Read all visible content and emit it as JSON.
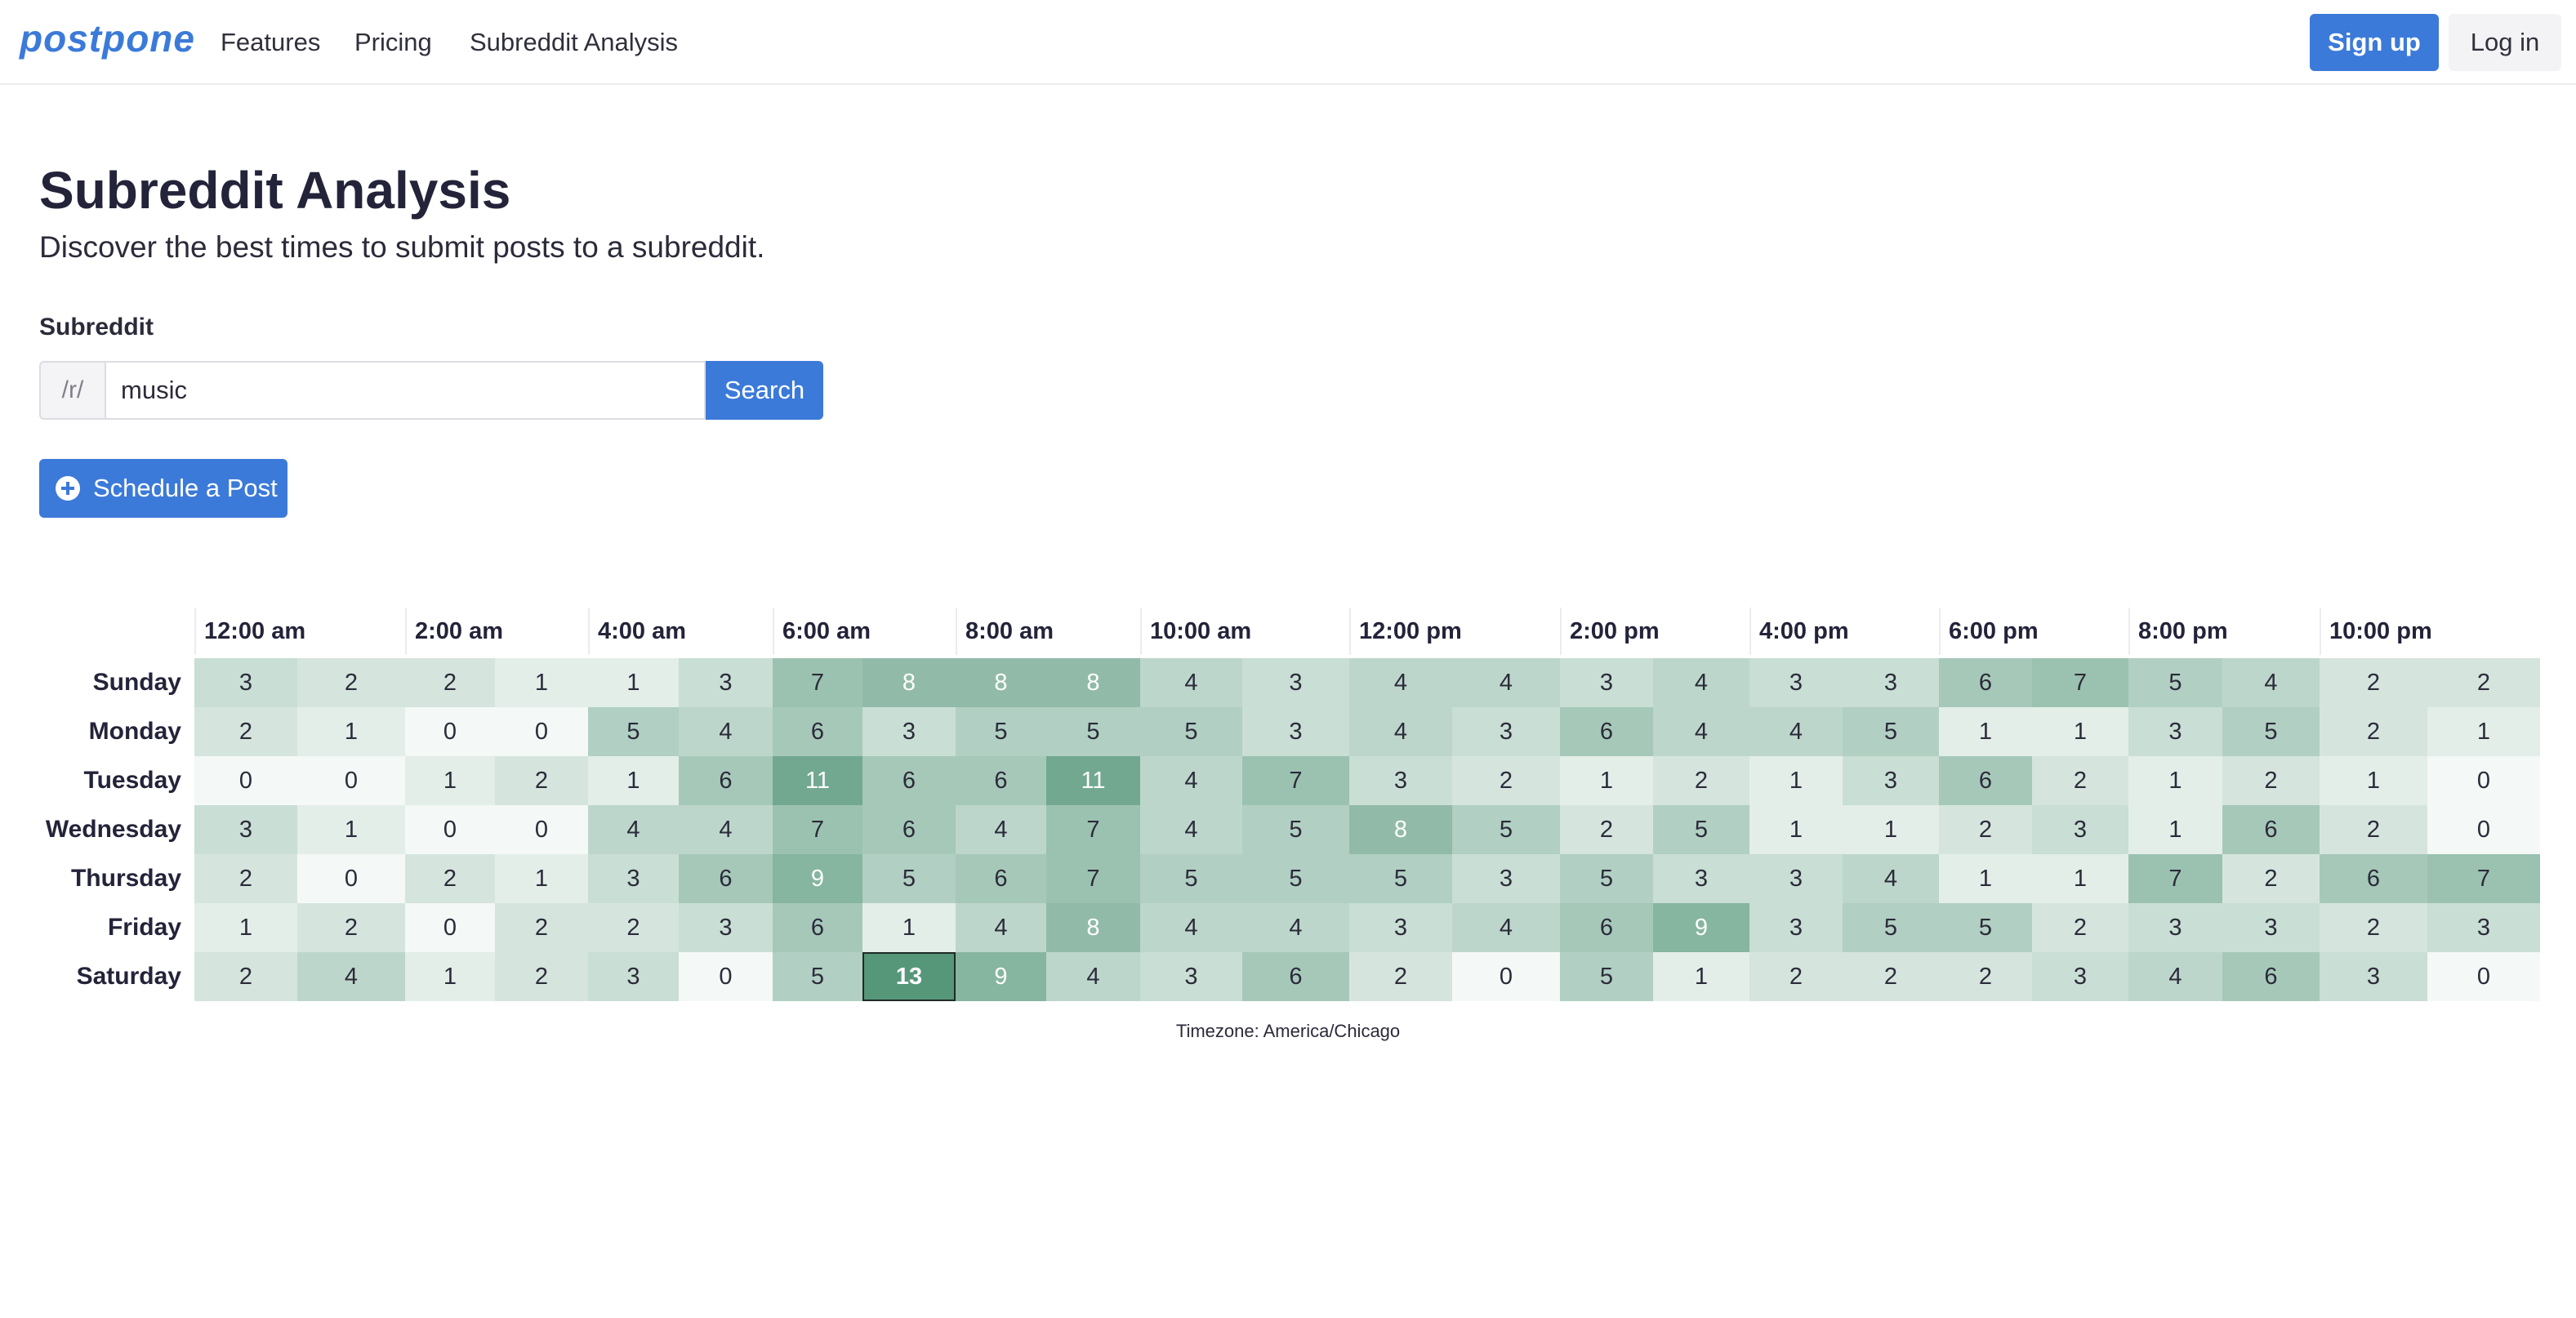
{
  "nav": {
    "logo": "postpone",
    "links": [
      "Features",
      "Pricing",
      "Subreddit Analysis"
    ],
    "signup": "Sign up",
    "login": "Log in"
  },
  "page": {
    "title": "Subreddit Analysis",
    "subtitle": "Discover the best times to submit posts to a subreddit."
  },
  "form": {
    "label": "Subreddit",
    "prefix": "/r/",
    "value": "music",
    "search": "Search",
    "schedule": "Schedule a Post"
  },
  "colors": {
    "accent": "#3b7ad9",
    "heat_low": "#f4f8f6",
    "heat_high": "#5e9c80"
  },
  "chart_data": {
    "type": "heatmap",
    "hour_labels": [
      "12:00 am",
      "2:00 am",
      "4:00 am",
      "6:00 am",
      "8:00 am",
      "10:00 am",
      "12:00 pm",
      "2:00 pm",
      "4:00 pm",
      "6:00 pm",
      "8:00 pm",
      "10:00 pm"
    ],
    "days": [
      "Sunday",
      "Monday",
      "Tuesday",
      "Wednesday",
      "Thursday",
      "Friday",
      "Saturday"
    ],
    "values": [
      [
        3,
        2,
        2,
        1,
        1,
        3,
        7,
        8,
        8,
        8,
        4,
        3,
        4,
        4,
        3,
        4,
        3,
        3,
        6,
        7,
        5,
        4,
        2,
        2
      ],
      [
        2,
        1,
        0,
        0,
        5,
        4,
        6,
        3,
        5,
        5,
        5,
        3,
        4,
        3,
        6,
        4,
        4,
        5,
        1,
        1,
        3,
        5,
        2,
        1
      ],
      [
        0,
        0,
        1,
        2,
        1,
        6,
        11,
        6,
        6,
        11,
        4,
        7,
        3,
        2,
        1,
        2,
        1,
        3,
        6,
        2,
        1,
        2,
        1,
        0
      ],
      [
        3,
        1,
        0,
        0,
        4,
        4,
        7,
        6,
        4,
        7,
        4,
        5,
        8,
        5,
        2,
        5,
        1,
        1,
        2,
        3,
        1,
        6,
        2,
        0
      ],
      [
        2,
        0,
        2,
        1,
        3,
        6,
        9,
        5,
        6,
        7,
        5,
        5,
        5,
        3,
        5,
        3,
        3,
        4,
        1,
        1,
        7,
        2,
        6,
        7
      ],
      [
        1,
        2,
        0,
        2,
        2,
        3,
        6,
        1,
        4,
        8,
        4,
        4,
        3,
        4,
        6,
        9,
        3,
        5,
        5,
        2,
        3,
        3,
        2,
        3
      ],
      [
        2,
        4,
        1,
        2,
        3,
        0,
        5,
        13,
        9,
        4,
        3,
        6,
        2,
        0,
        5,
        1,
        2,
        2,
        2,
        3,
        4,
        6,
        3,
        0
      ]
    ],
    "highlight": {
      "day": "Saturday",
      "hour_index": 7,
      "value": 13
    },
    "footer": "Timezone: America/Chicago"
  }
}
